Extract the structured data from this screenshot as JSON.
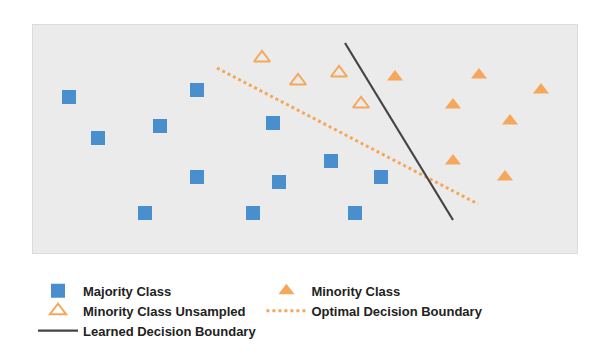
{
  "chart_data": {
    "type": "scatter",
    "xlim": [
      0,
      544
    ],
    "ylim": [
      0,
      228
    ],
    "tick_labels": false,
    "grid": false,
    "legend": "bottom",
    "series": [
      {
        "name": "Majority Class",
        "type": "scatter",
        "marker": "square",
        "color": "#4a8fcd",
        "x": [
          36,
          65,
          164,
          127,
          240,
          164,
          246,
          298,
          348,
          112,
          220,
          322
        ],
        "y": [
          156,
          115,
          163,
          127,
          130,
          76,
          71,
          92,
          76,
          40,
          40,
          40
        ]
      },
      {
        "name": "Minority Class",
        "type": "scatter",
        "marker": "triangle-up",
        "color": "#f5a85c",
        "x": [
          362,
          446,
          508,
          420,
          477,
          420,
          472
        ],
        "y": [
          176,
          178,
          163,
          148,
          132,
          92,
          76
        ]
      },
      {
        "name": "Minority Class Unsampled",
        "type": "scatter",
        "marker": "triangle-up-open",
        "color": "#f5a85c",
        "x": [
          229,
          265,
          306,
          328
        ],
        "y": [
          195,
          172,
          180,
          149
        ]
      },
      {
        "name": "Optimal Decision Boundary",
        "type": "line",
        "line_style": "dot",
        "color": "#f5a85c",
        "x": [
          184,
          445
        ],
        "y": [
          185,
          49
        ]
      },
      {
        "name": "Learned Decision Boundary",
        "type": "line",
        "line_style": "solid",
        "color": "#444444",
        "x": [
          312,
          420
        ],
        "y": [
          210,
          33
        ]
      }
    ]
  }
}
